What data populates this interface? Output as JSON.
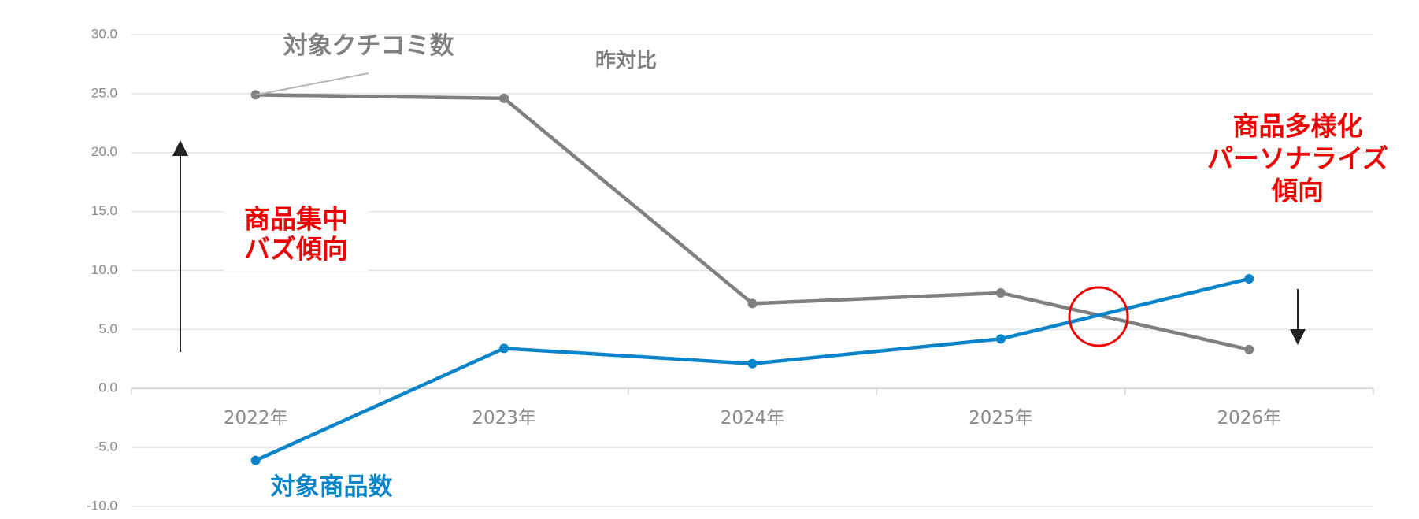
{
  "chart_data": {
    "type": "line",
    "categories": [
      "2022年",
      "2023年",
      "2024年",
      "2025年",
      "2026年"
    ],
    "series": [
      {
        "name": "対象クチコミ数",
        "color": "#808080",
        "values": [
          24.9,
          24.6,
          7.2,
          8.1,
          3.3
        ]
      },
      {
        "name": "対象商品数",
        "color": "#0a84c9",
        "values": [
          -6.1,
          3.4,
          2.1,
          4.2,
          9.3
        ]
      }
    ],
    "ylim": [
      -10,
      30
    ],
    "yticks": [
      {
        "value": -10,
        "label": "-10.0"
      },
      {
        "value": -5,
        "label": "-5.0"
      },
      {
        "value": 0,
        "label": "0.0"
      },
      {
        "value": 5,
        "label": "5.0"
      },
      {
        "value": 10,
        "label": "10.0"
      },
      {
        "value": 15,
        "label": "15.0"
      },
      {
        "value": 20,
        "label": "20.0"
      },
      {
        "value": 25,
        "label": "25.0"
      },
      {
        "value": 30,
        "label": "30.0"
      }
    ],
    "grid": true,
    "annotations": [
      {
        "lines": [
          "昨対比"
        ]
      },
      {
        "lines": [
          "商品集中",
          "バズ傾向"
        ]
      },
      {
        "lines": [
          "商品多様化",
          "パーソナライズ",
          "傾向"
        ]
      }
    ]
  }
}
